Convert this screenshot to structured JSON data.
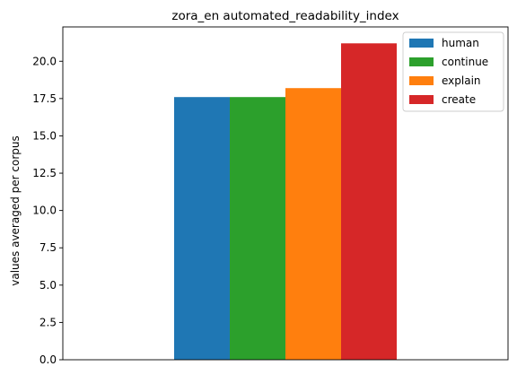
{
  "chart_data": {
    "type": "bar",
    "title": "zora_en automated_readability_index",
    "xlabel": "",
    "ylabel": "values averaged per corpus",
    "ylim": [
      0,
      22.3
    ],
    "yticks": [
      0.0,
      2.5,
      5.0,
      7.5,
      10.0,
      12.5,
      15.0,
      17.5,
      20.0
    ],
    "ytick_labels": [
      "0.0",
      "2.5",
      "5.0",
      "7.5",
      "10.0",
      "12.5",
      "15.0",
      "17.5",
      "20.0"
    ],
    "grid": false,
    "legend_position": "top-right",
    "series": [
      {
        "name": "human",
        "values": [
          17.6
        ],
        "color": "#1f77b4"
      },
      {
        "name": "continue",
        "values": [
          17.6
        ],
        "color": "#2ca02c"
      },
      {
        "name": "explain",
        "values": [
          18.2
        ],
        "color": "#ff7f0e"
      },
      {
        "name": "create",
        "values": [
          21.2
        ],
        "color": "#d62728"
      }
    ]
  }
}
